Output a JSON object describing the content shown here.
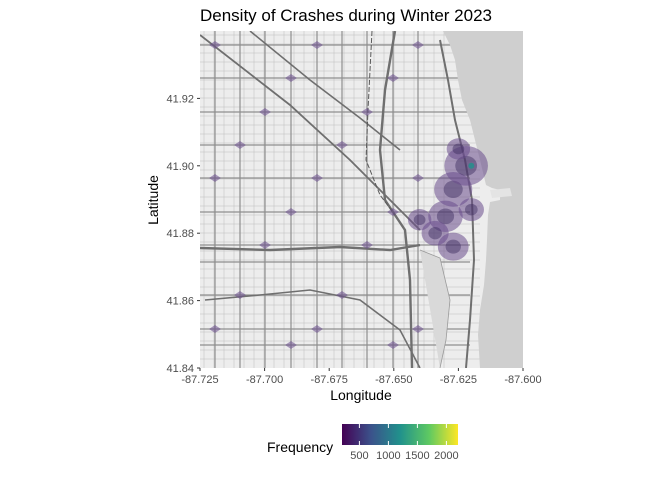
{
  "chart_data": {
    "type": "heatmap",
    "title": "Density of Crashes during Winter 2023",
    "xlabel": "Longitude",
    "ylabel": "Latitude",
    "xlim": [
      -87.725,
      -87.6
    ],
    "ylim": [
      41.84,
      41.94
    ],
    "x_ticks": [
      -87.725,
      -87.7,
      -87.675,
      -87.65,
      -87.625,
      -87.6
    ],
    "x_tick_labels": [
      "-87.725",
      "-87.700",
      "-87.675",
      "-87.650",
      "-87.625",
      "-87.600"
    ],
    "y_ticks": [
      41.84,
      41.86,
      41.88,
      41.9,
      41.92
    ],
    "y_tick_labels": [
      "41.84",
      "41.86",
      "41.88",
      "41.90",
      "41.92"
    ],
    "background": "grayscale street basemap of Chicago with Lake Michigan on the east",
    "grid": false,
    "legend": {
      "title": "Frequency",
      "position": "bottom",
      "colormap": "viridis",
      "range": [
        200,
        2200
      ],
      "ticks": [
        500,
        1000,
        1500,
        2000
      ],
      "tick_labels": [
        "500",
        "1000",
        "1500",
        "2000"
      ],
      "colors": [
        "#440154",
        "#3b528b",
        "#21918c",
        "#5ec962",
        "#fde725"
      ]
    },
    "density_hotspots": [
      {
        "lon": -87.627,
        "lat": 41.893,
        "level": 800
      },
      {
        "lon": -87.63,
        "lat": 41.885,
        "level": 700
      },
      {
        "lon": -87.627,
        "lat": 41.876,
        "level": 600
      },
      {
        "lon": -87.622,
        "lat": 41.9,
        "level": 950
      },
      {
        "lon": -87.634,
        "lat": 41.88,
        "level": 500
      },
      {
        "lon": -87.64,
        "lat": 41.884,
        "level": 400
      },
      {
        "lon": -87.62,
        "lat": 41.887,
        "level": 450
      },
      {
        "lon": -87.625,
        "lat": 41.905,
        "level": 400
      }
    ]
  },
  "colors": {
    "panel_background": "#ebebeb",
    "lake": "#cfcfcf",
    "density_fill": "#6a4c8c"
  }
}
